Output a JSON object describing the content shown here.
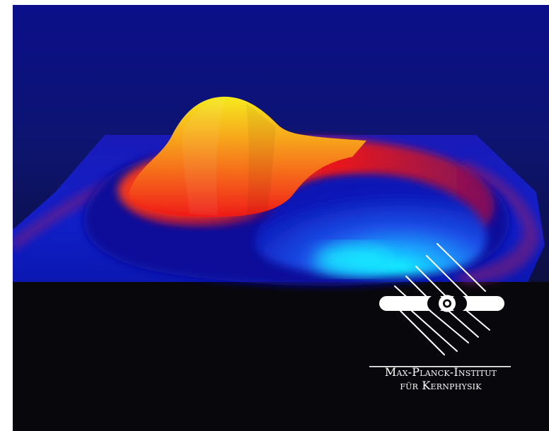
{
  "logo": {
    "line1": "Max-Planck-Institut",
    "line2": "für Kernphysik"
  },
  "colors": {
    "background_top": "#0b0f8a",
    "background_bottom": "#0a0a2a",
    "floor": "#08070b",
    "peak": "#f5e21a",
    "ridge": "#f01a1a",
    "well": "#00f0ff",
    "surface_base": "#0a1ab0"
  }
}
